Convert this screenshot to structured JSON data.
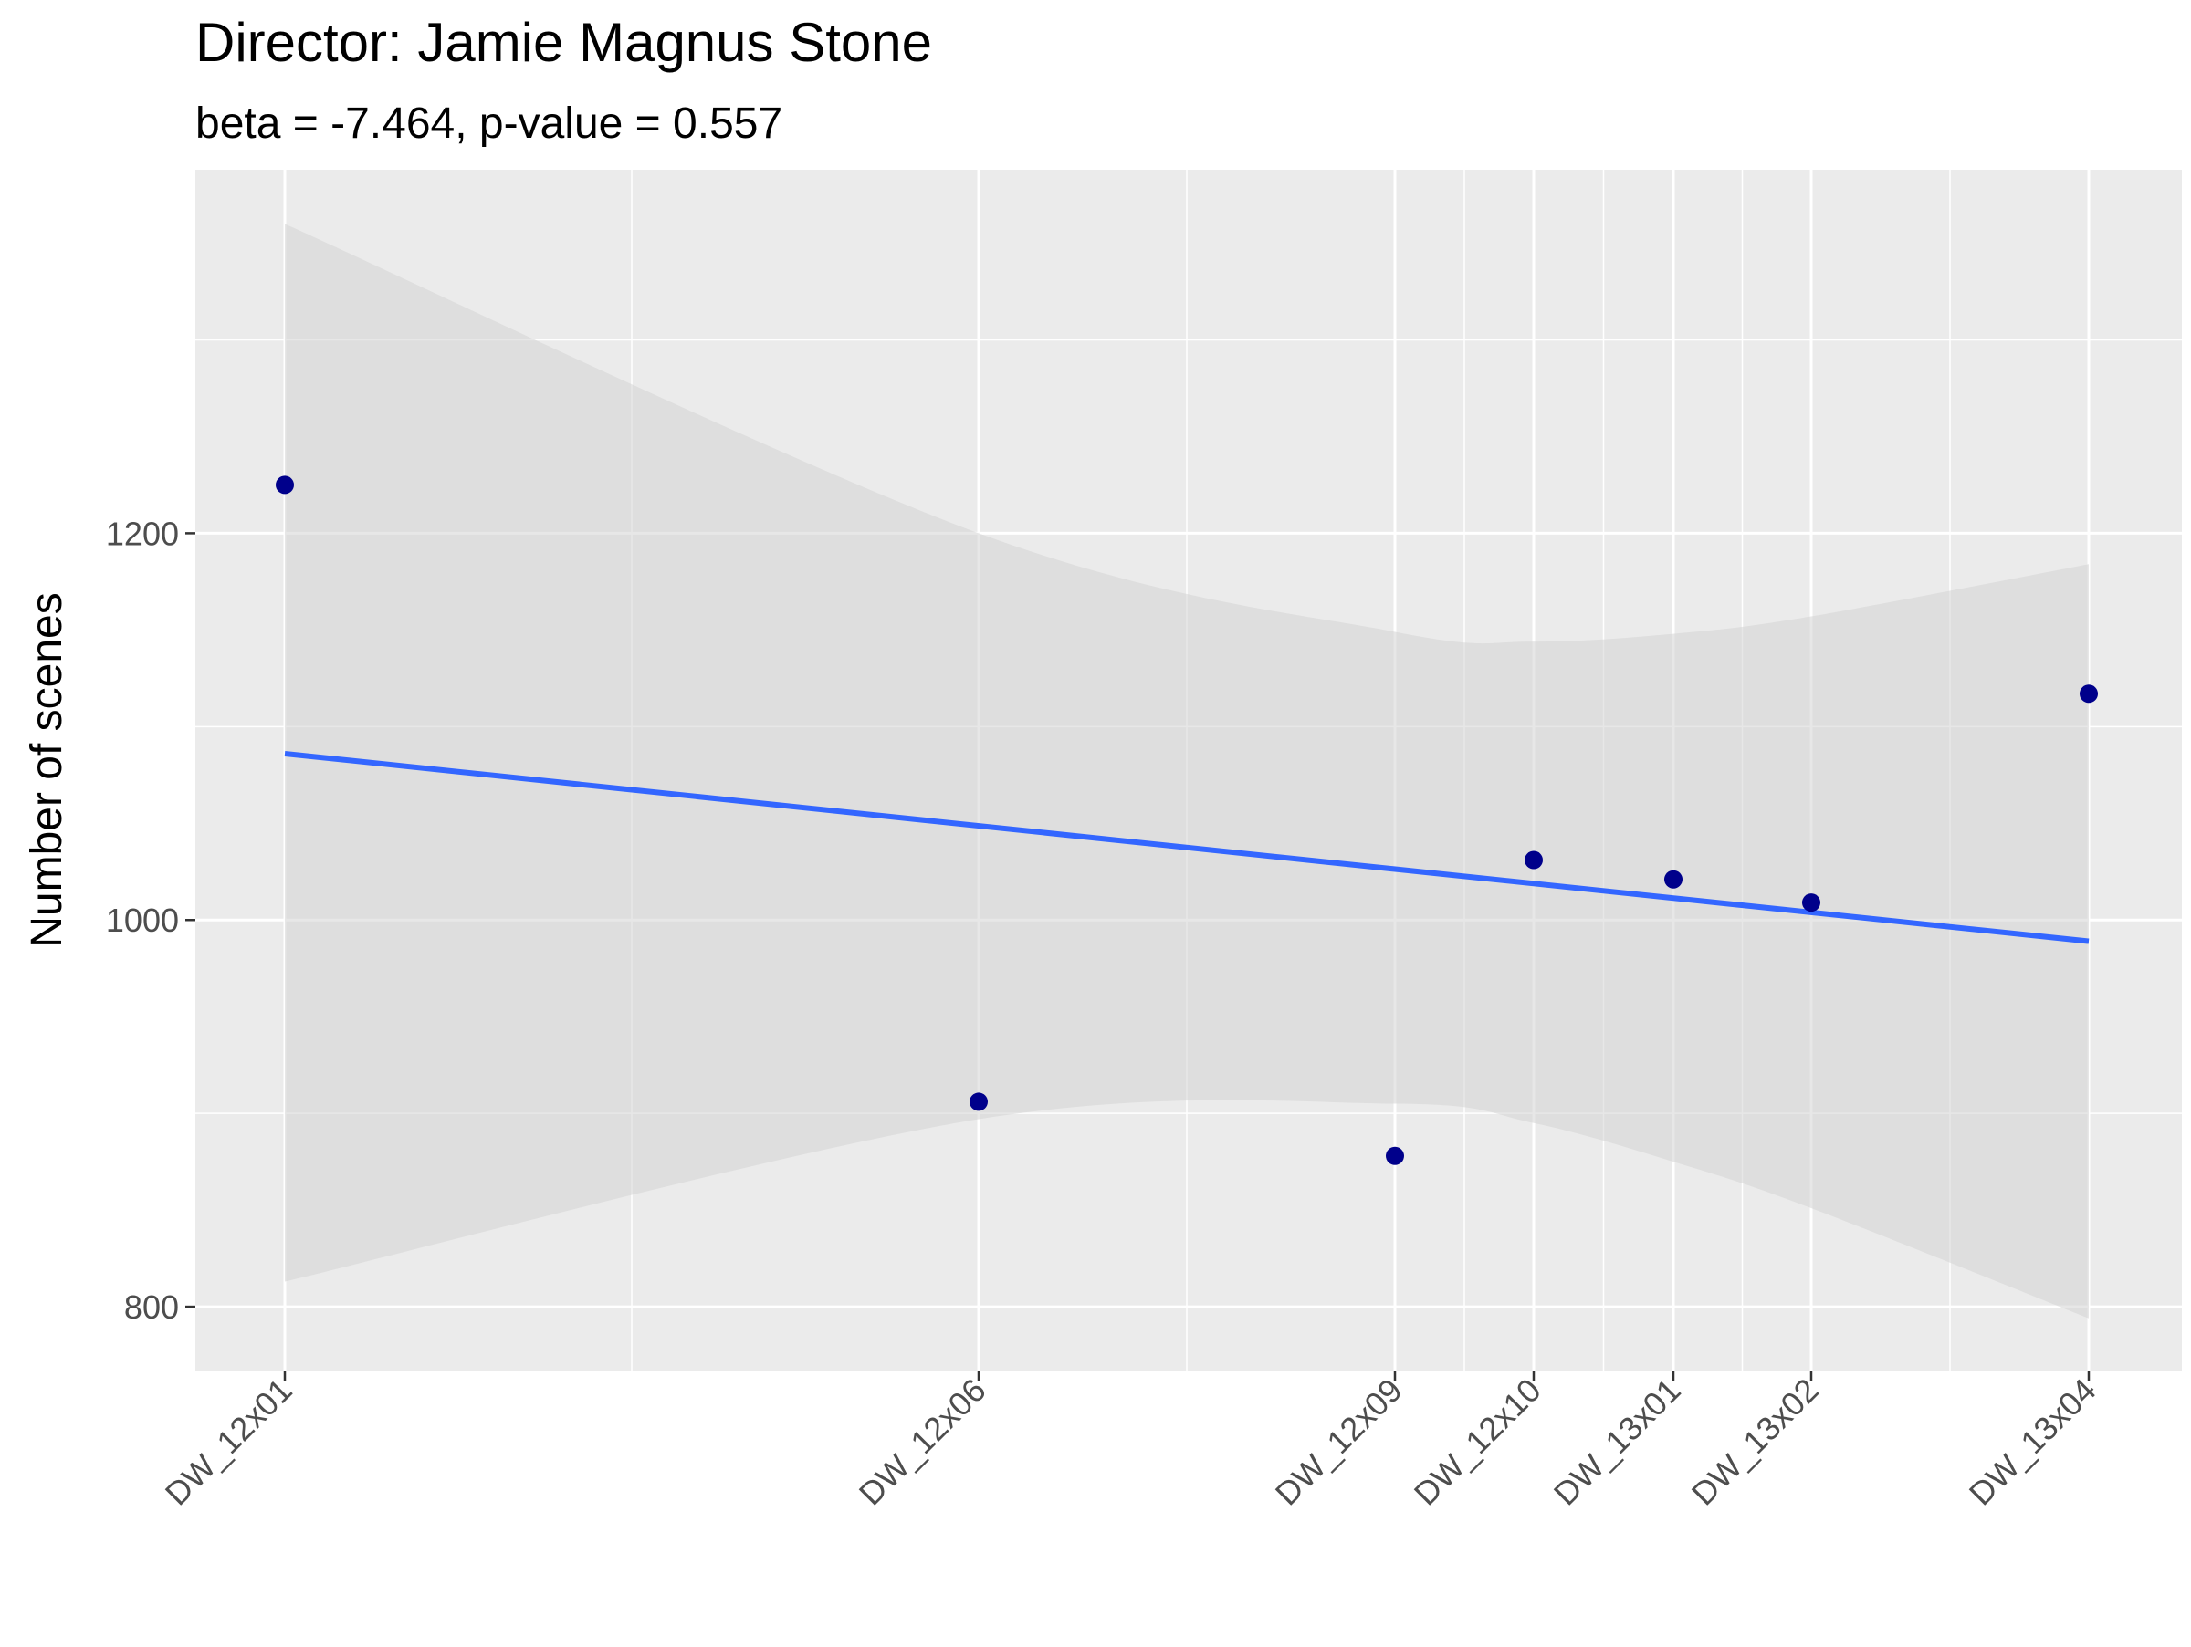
{
  "chart_data": {
    "type": "scatter",
    "title": "Director: Jamie Magnus Stone",
    "subtitle": "beta = -7.464, p-value = 0.557",
    "xlabel": "",
    "ylabel": "Number of scenes",
    "x_tick_labels": [
      "DW_12x01",
      "DW_12x06",
      "DW_12x09",
      "DW_12x10",
      "DW_13x01",
      "DW_13x02",
      "DW_13x04"
    ],
    "y_ticks": [
      800,
      1000,
      1200
    ],
    "ylim": [
      767,
      1388
    ],
    "points": [
      {
        "x": "DW_12x01",
        "y": 1225
      },
      {
        "x": "DW_12x06",
        "y": 906
      },
      {
        "x": "DW_12x09",
        "y": 878
      },
      {
        "x": "DW_12x10",
        "y": 1031
      },
      {
        "x": "DW_13x01",
        "y": 1021
      },
      {
        "x": "DW_13x02",
        "y": 1009
      },
      {
        "x": "DW_13x04",
        "y": 1117
      }
    ],
    "trend_line": {
      "start": {
        "x": "DW_12x01",
        "y": 1086
      },
      "end": {
        "x": "DW_13x04",
        "y": 989
      }
    },
    "confidence_band": {
      "upper": [
        {
          "x": "DW_12x01",
          "y": 1360
        },
        {
          "x": "DW_12x06",
          "y": 1200
        },
        {
          "x": "DW_12x09",
          "y": 1149
        },
        {
          "x": "DW_12x10",
          "y": 1144
        },
        {
          "x": "DW_13x01",
          "y": 1148
        },
        {
          "x": "DW_13x02",
          "y": 1157
        },
        {
          "x": "DW_13x04",
          "y": 1184
        }
      ],
      "lower": [
        {
          "x": "DW_12x01",
          "y": 813
        },
        {
          "x": "DW_12x06",
          "y": 897
        },
        {
          "x": "DW_12x09",
          "y": 905
        },
        {
          "x": "DW_12x10",
          "y": 895
        },
        {
          "x": "DW_13x01",
          "y": 875
        },
        {
          "x": "DW_13x02",
          "y": 851
        },
        {
          "x": "DW_13x04",
          "y": 794
        }
      ]
    },
    "grid": true,
    "legend": "none",
    "colors": {
      "panel": "#ebebeb",
      "points": "#00008b",
      "line": "#3366ff",
      "band": "#d3d3d3"
    }
  }
}
